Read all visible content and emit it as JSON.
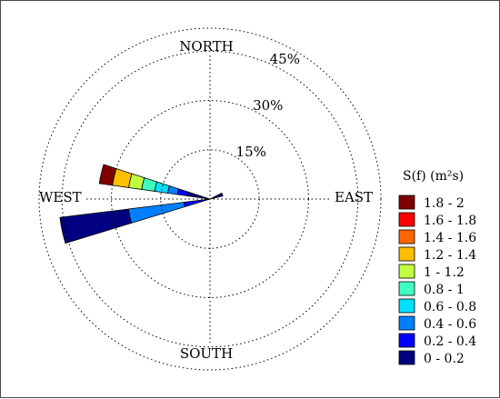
{
  "chart_data": {
    "type": "wind-rose",
    "directions": {
      "north": "NORTH",
      "east": "EAST",
      "south": "SOUTH",
      "west": "WEST"
    },
    "radial_ticks": [
      {
        "value": 15,
        "label": "15%"
      },
      {
        "value": 30,
        "label": "30%"
      },
      {
        "value": 45,
        "label": "45%"
      }
    ],
    "r_max": 52,
    "legend_title": "S(f) (m²s)",
    "bins": [
      {
        "label": "1.8 - 2",
        "color": "#800000"
      },
      {
        "label": "1.6 - 1.8",
        "color": "#ff0000"
      },
      {
        "label": "1.4 - 1.6",
        "color": "#ff6600"
      },
      {
        "label": "1.2 - 1.4",
        "color": "#ffbf00"
      },
      {
        "label": "1 - 1.2",
        "color": "#bfff40"
      },
      {
        "label": "0.8 - 1",
        "color": "#40ffbf"
      },
      {
        "label": "0.6 - 0.8",
        "color": "#00dfff"
      },
      {
        "label": "0.4 - 0.6",
        "color": "#0080ff"
      },
      {
        "label": "0.2 - 0.4",
        "color": "#0000ff"
      },
      {
        "label": "0 - 0.2",
        "color": "#000080"
      }
    ],
    "sectors": [
      {
        "direction_deg": 283,
        "width_deg": 10,
        "stacks": [
          {
            "bin": "0 - 0.2",
            "cumulative": 7
          },
          {
            "bin": "0.2 - 0.4",
            "cumulative": 10
          },
          {
            "bin": "0.4 - 0.6",
            "cumulative": 13
          },
          {
            "bin": "0.6 - 0.8",
            "cumulative": 17
          },
          {
            "bin": "0.8 - 1",
            "cumulative": 21
          },
          {
            "bin": "1 - 1.2",
            "cumulative": 25
          },
          {
            "bin": "1.2 - 1.4",
            "cumulative": 30
          },
          {
            "bin": "1.8 - 2",
            "cumulative": 34
          }
        ]
      },
      {
        "direction_deg": 258,
        "width_deg": 10,
        "stacks": [
          {
            "bin": "0.2 - 0.4",
            "cumulative": 8
          },
          {
            "bin": "0.4 - 0.6",
            "cumulative": 25
          },
          {
            "bin": "0 - 0.2",
            "cumulative": 46
          }
        ]
      },
      {
        "direction_deg": 70,
        "width_deg": 14,
        "stacks": [
          {
            "bin": "0 - 0.2",
            "cumulative": 4
          }
        ]
      }
    ]
  }
}
